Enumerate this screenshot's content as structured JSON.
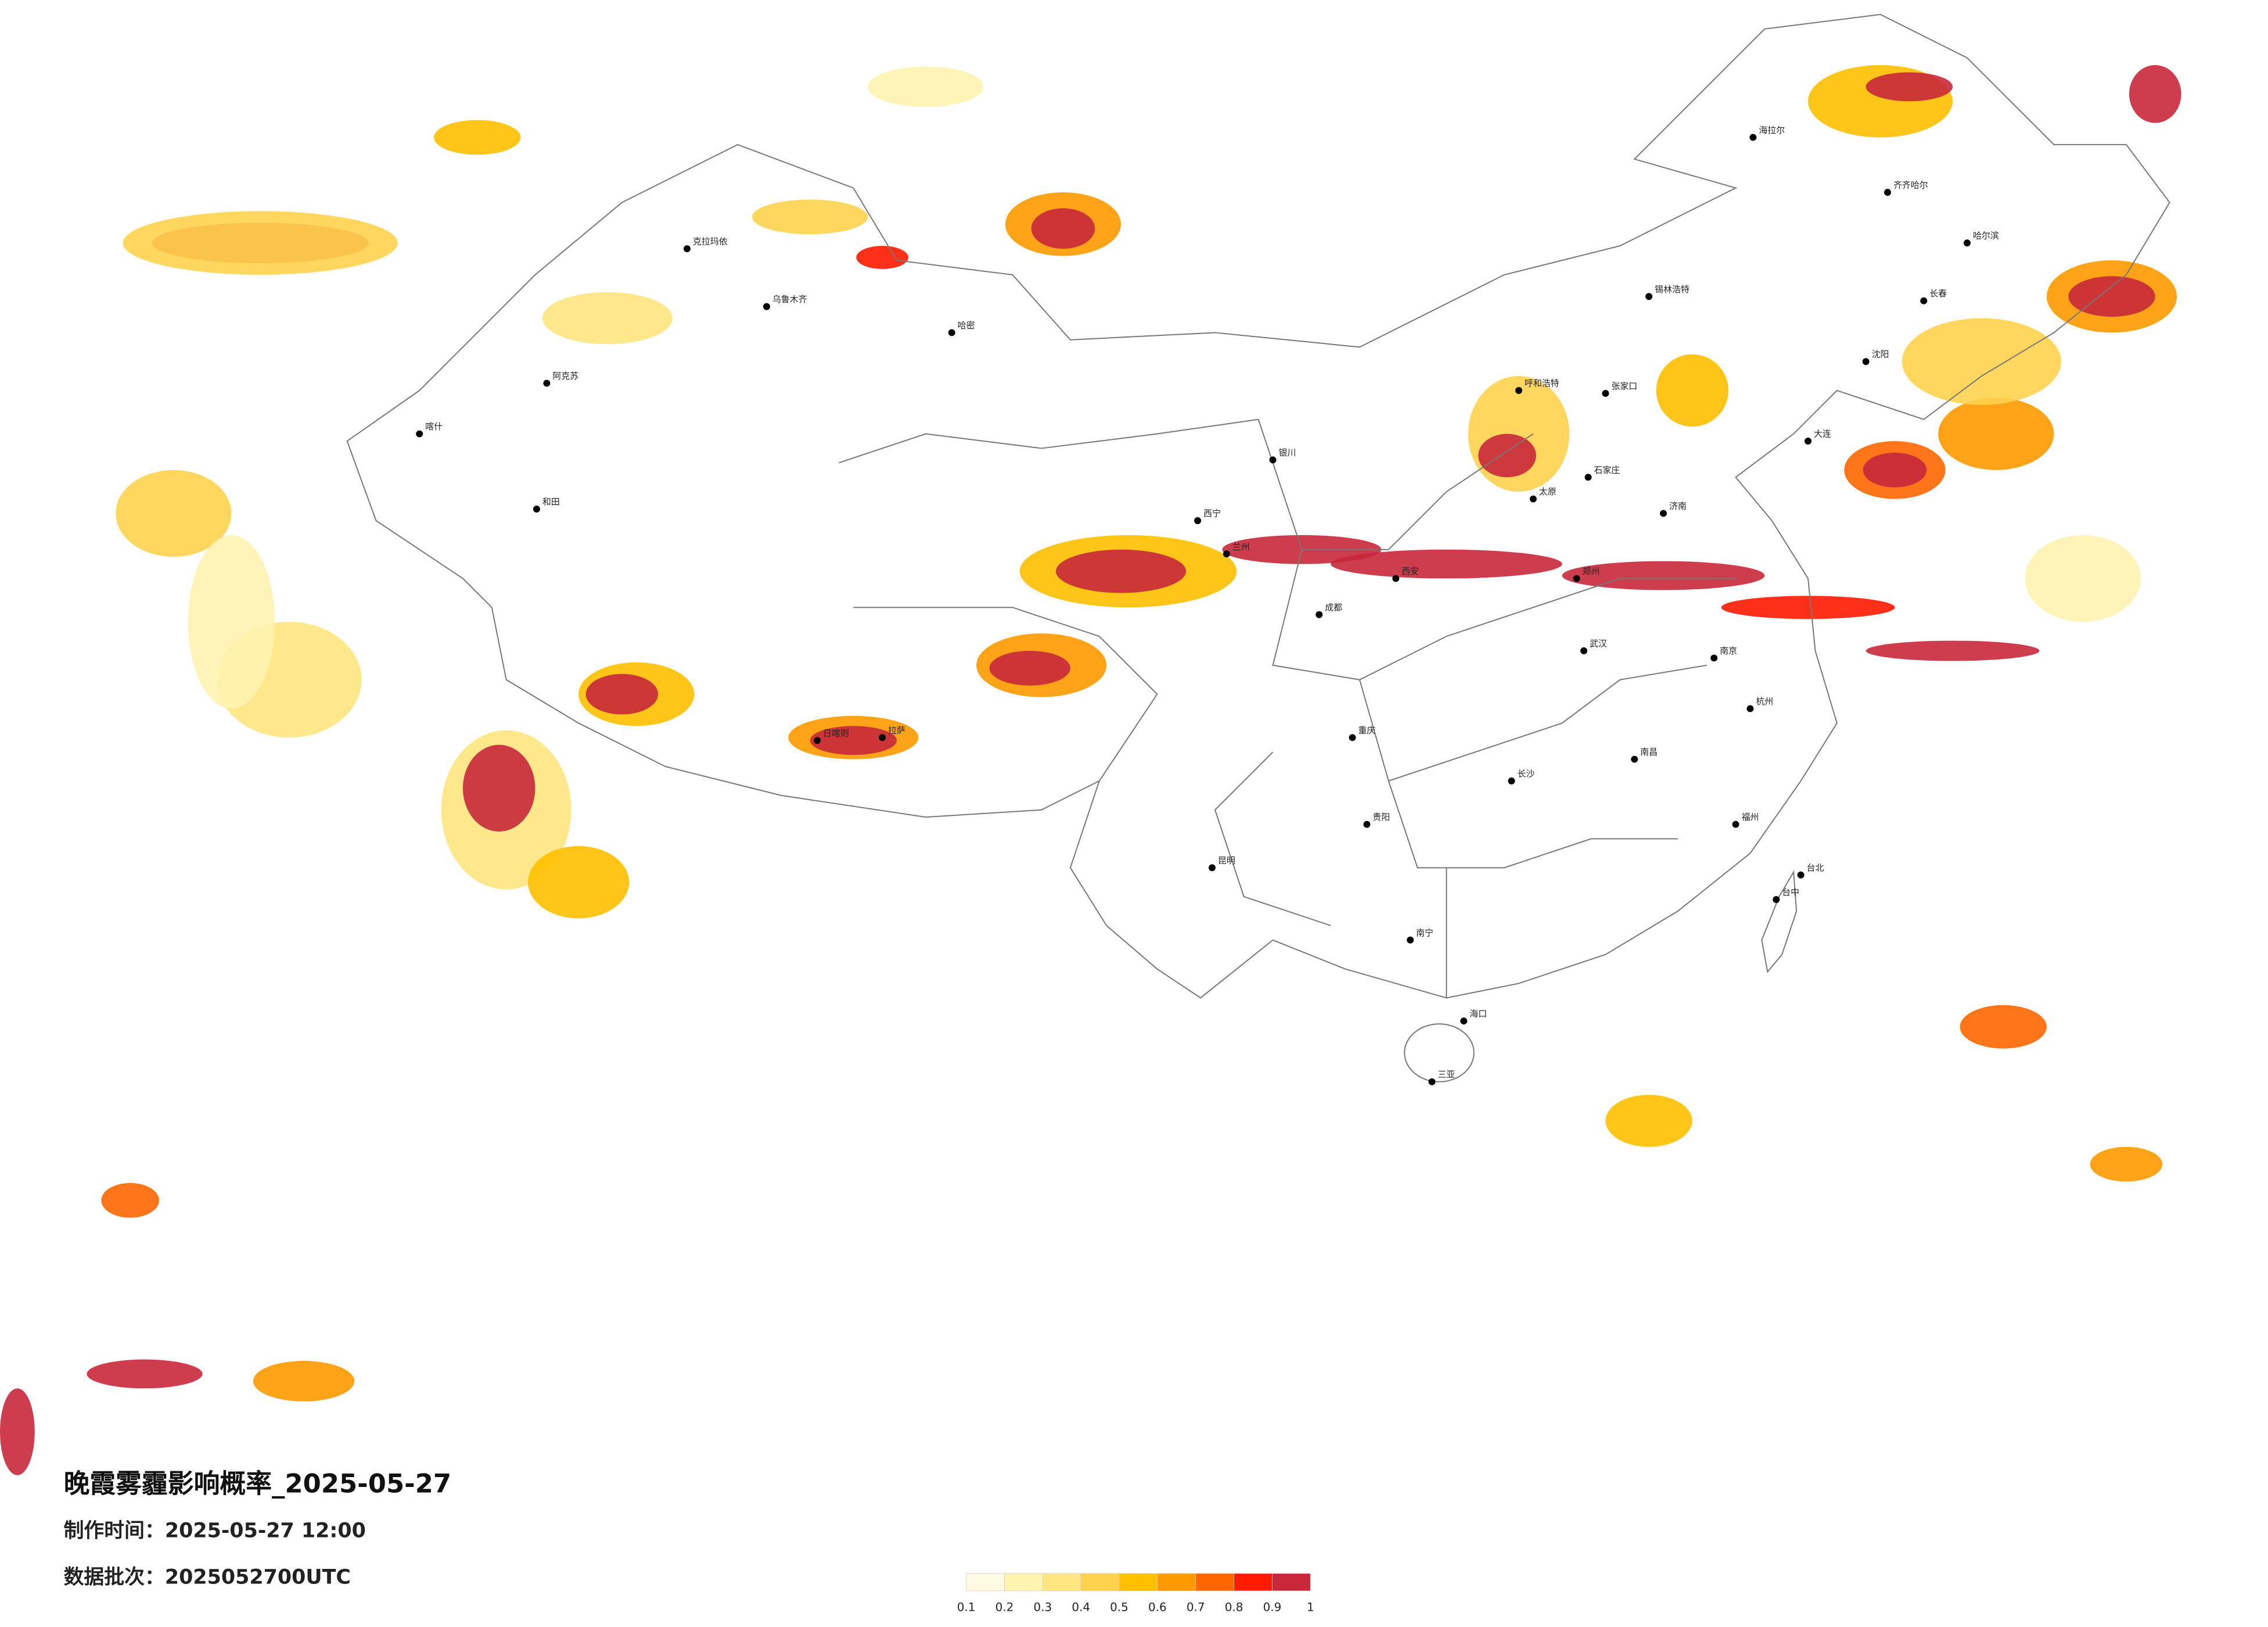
{
  "map": {
    "title": "晚霞雾霾影响概率_2025-05-27",
    "made_time": "制作时间：2025-05-27 12:00",
    "batch": "数据批次：2025052700UTC",
    "colorbar": {
      "levels": [
        0.1,
        0.2,
        0.3,
        0.4,
        0.5,
        0.6,
        0.7,
        0.8,
        0.9,
        1
      ],
      "colors": [
        "#fffbe3",
        "#fff3b0",
        "#ffe680",
        "#ffd24d",
        "#ffc000",
        "#ff9900",
        "#ff6600",
        "#ff1a00",
        "#c8283a"
      ]
    },
    "cities": [
      "克拉玛依",
      "乌鲁木齐",
      "哈密",
      "阿克苏",
      "和田",
      "喀什",
      "日喀则",
      "拉萨",
      "西宁",
      "兰州",
      "银川",
      "呼和浩特",
      "张家口",
      "石家庄",
      "太原",
      "西安",
      "成都",
      "重庆",
      "贵阳",
      "昆明",
      "南宁",
      "海口",
      "三亚",
      "长沙",
      "武汉",
      "南昌",
      "福州",
      "台北",
      "台中",
      "杭州",
      "南京",
      "济南",
      "沈阳",
      "长春",
      "哈尔滨",
      "齐齐哈尔",
      "海拉尔",
      "锡林浩特",
      "大连",
      "郑州"
    ]
  }
}
